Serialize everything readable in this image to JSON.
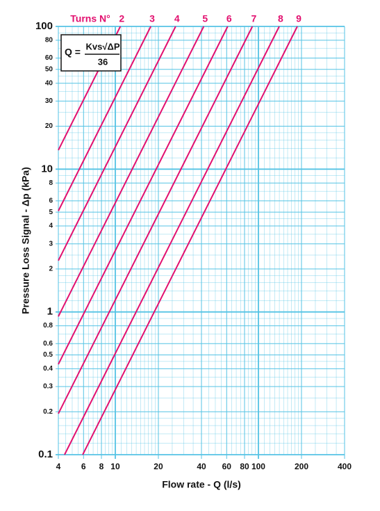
{
  "chart_data": {
    "type": "line",
    "title": "Turns N°",
    "x_label": "Flow rate - Q (l/s)",
    "y_label": "Pressure Loss Signal  - Δp (kPa)",
    "formula": {
      "lhs": "Q =",
      "numerator": "Kvs√ΔP",
      "denominator": "36"
    },
    "log_x": true,
    "log_y": true,
    "grid": true,
    "xlim": [
      4,
      400
    ],
    "ylim": [
      0.1,
      100
    ],
    "xticks": [
      4,
      6,
      8,
      10,
      20,
      40,
      60,
      80,
      100,
      200,
      400
    ],
    "yticks": [
      0.1,
      0.2,
      0.3,
      0.4,
      0.5,
      0.6,
      0.8,
      1,
      2,
      3,
      4,
      5,
      6,
      8,
      10,
      20,
      30,
      40,
      50,
      60,
      80,
      100
    ],
    "x_grid": [
      4.5,
      5,
      5.5,
      6.5,
      7,
      7.5,
      8.5,
      9,
      9.5,
      11,
      12,
      13,
      14,
      15,
      16,
      17,
      18,
      19,
      25,
      30,
      35,
      45,
      50,
      55,
      65,
      70,
      75,
      85,
      90,
      95,
      110,
      120,
      130,
      140,
      150,
      160,
      170,
      180,
      190,
      250,
      300,
      350
    ],
    "y_grid": [
      0.12,
      0.14,
      0.16,
      0.18,
      0.25,
      0.35,
      0.45,
      0.7,
      0.9,
      1.2,
      1.4,
      1.6,
      1.8,
      2.5,
      3.5,
      4.5,
      7,
      9,
      12,
      14,
      16,
      18,
      25,
      35,
      45,
      70,
      90
    ],
    "series": [
      {
        "name": "2",
        "color": "#e2106f",
        "x": [
          4,
          10.85
        ],
        "y": [
          13.6,
          100
        ]
      },
      {
        "name": "3",
        "color": "#e2106f",
        "x": [
          4,
          17.7
        ],
        "y": [
          5.1,
          100
        ]
      },
      {
        "name": "4",
        "color": "#e2106f",
        "x": [
          4,
          26.4
        ],
        "y": [
          2.29,
          100
        ]
      },
      {
        "name": "5",
        "color": "#e2106f",
        "x": [
          4,
          41.5
        ],
        "y": [
          0.93,
          100
        ]
      },
      {
        "name": "6",
        "color": "#e2106f",
        "x": [
          4,
          61
        ],
        "y": [
          0.43,
          100
        ]
      },
      {
        "name": "7",
        "color": "#e2106f",
        "x": [
          4,
          90.8
        ],
        "y": [
          0.194,
          100
        ]
      },
      {
        "name": "8",
        "color": "#e2106f",
        "x": [
          4.42,
          139.8
        ],
        "y": [
          0.1,
          100
        ]
      },
      {
        "name": "9",
        "color": "#e2106f",
        "x": [
          5.92,
          187
        ],
        "y": [
          0.1,
          100
        ]
      }
    ]
  }
}
